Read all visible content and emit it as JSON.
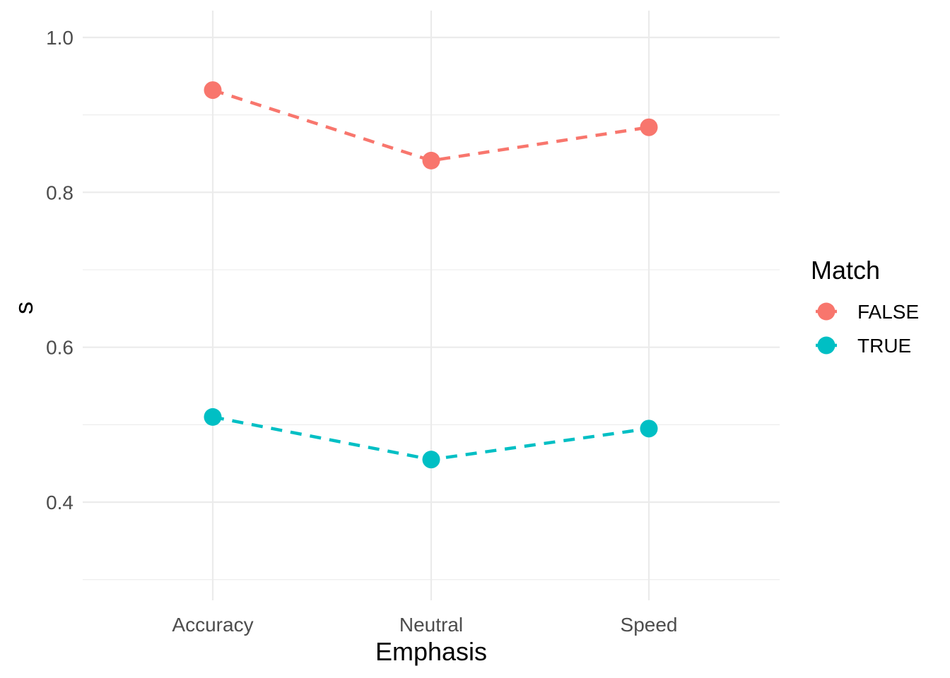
{
  "chart_data": {
    "type": "line",
    "xlabel": "Emphasis",
    "ylabel": "s",
    "categories": [
      "Accuracy",
      "Neutral",
      "Speed"
    ],
    "ylim": [
      0.3,
      1.03
    ],
    "y_major_ticks": [
      0.4,
      0.6,
      0.8,
      1.0
    ],
    "y_tick_labels": [
      "0.4",
      "0.6",
      "0.8",
      "1.0"
    ],
    "y_minor_ticks": [
      0.3,
      0.5,
      0.7,
      0.9
    ],
    "grid": true,
    "line_style": "dashed",
    "legend": {
      "title": "Match",
      "position": "right"
    },
    "series": [
      {
        "name": "FALSE",
        "color": "#F8766D",
        "values": [
          0.932,
          0.841,
          0.884
        ]
      },
      {
        "name": "TRUE",
        "color": "#00BFC4",
        "values": [
          0.51,
          0.455,
          0.495
        ]
      }
    ]
  }
}
